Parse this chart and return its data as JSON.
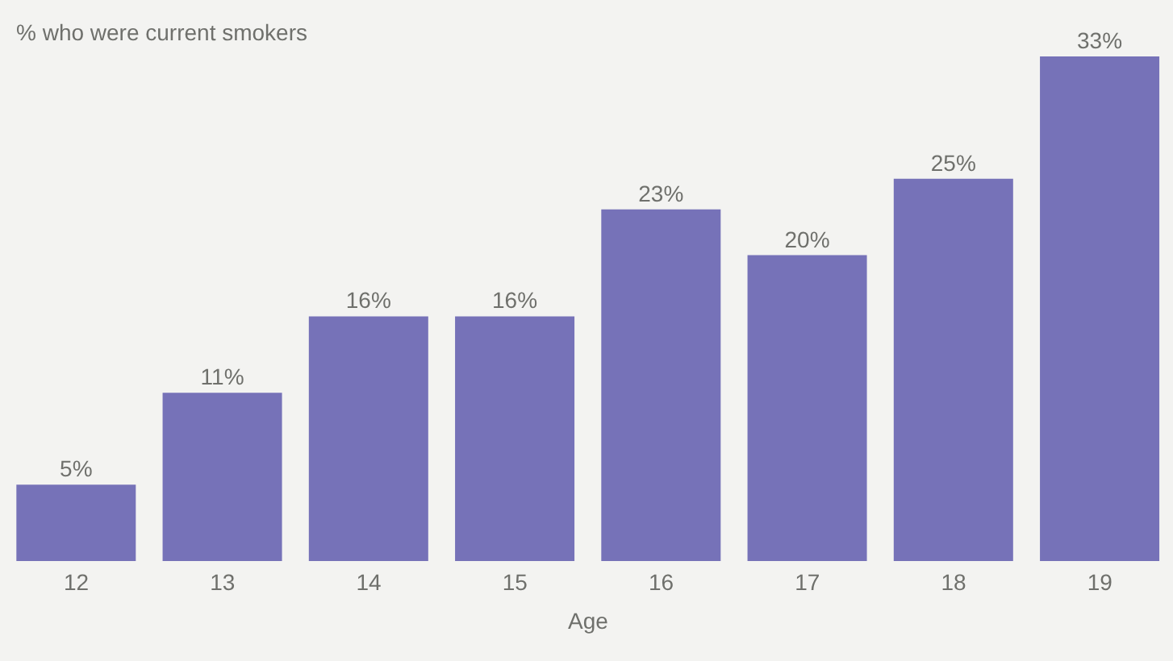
{
  "chart_data": {
    "type": "bar",
    "ylabel": "% who were current smokers",
    "xlabel": "Age",
    "categories": [
      "12",
      "13",
      "14",
      "15",
      "16",
      "17",
      "18",
      "19"
    ],
    "values": [
      5,
      11,
      16,
      16,
      23,
      20,
      25,
      33
    ],
    "value_labels": [
      "5%",
      "11%",
      "16%",
      "16%",
      "23%",
      "20%",
      "25%",
      "33%"
    ],
    "color": "#7672b8"
  }
}
